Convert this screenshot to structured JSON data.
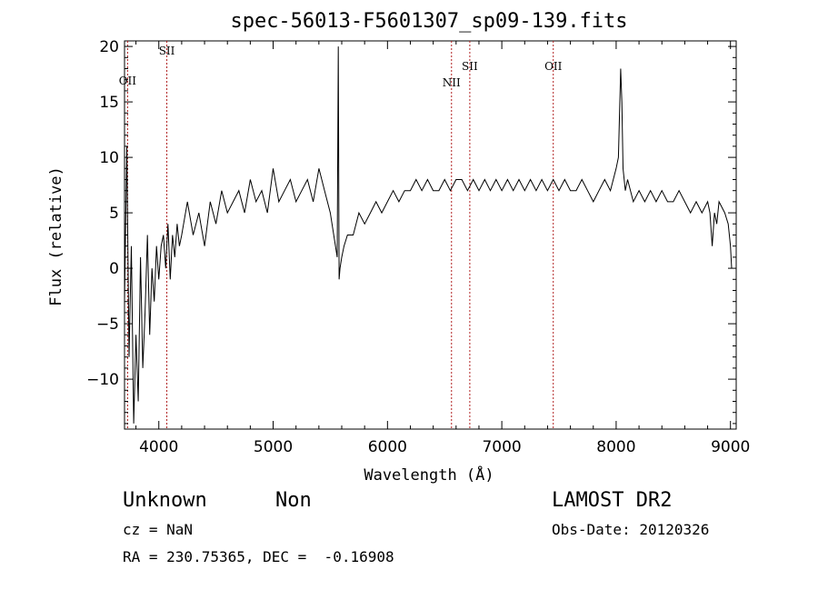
{
  "chart_data": {
    "type": "line",
    "title": "spec-56013-F5601307_sp09-139.fits",
    "xlabel": "Wavelength (Å)",
    "ylabel": "Flux (relative)",
    "xlim": [
      3700,
      9050
    ],
    "ylim": [
      -14.5,
      20.5
    ],
    "xticks": [
      4000,
      5000,
      6000,
      7000,
      8000,
      9000
    ],
    "yticks": [
      -10,
      -5,
      0,
      5,
      10,
      15,
      20
    ],
    "grid": false,
    "series": [
      {
        "x": [
          3700,
          3720,
          3740,
          3760,
          3780,
          3800,
          3820,
          3840,
          3860,
          3880,
          3900,
          3920,
          3940,
          3960,
          3980,
          4000,
          4020,
          4040,
          4060,
          4080,
          4100,
          4120,
          4140,
          4160,
          4180,
          4200,
          4250,
          4300,
          4350,
          4400,
          4450,
          4500,
          4550,
          4600,
          4650,
          4700,
          4750,
          4800,
          4850,
          4900,
          4950,
          5000,
          5050,
          5100,
          5150,
          5200,
          5250,
          5300,
          5350,
          5400,
          5450,
          5500,
          5530,
          5560,
          5570,
          5577,
          5585,
          5600,
          5620,
          5650,
          5700,
          5750,
          5800,
          5850,
          5900,
          5950,
          6000,
          6050,
          6100,
          6150,
          6200,
          6250,
          6300,
          6350,
          6400,
          6450,
          6500,
          6550,
          6600,
          6650,
          6700,
          6750,
          6800,
          6850,
          6900,
          6950,
          7000,
          7050,
          7100,
          7150,
          7200,
          7250,
          7300,
          7350,
          7400,
          7450,
          7500,
          7550,
          7600,
          7650,
          7700,
          7750,
          7800,
          7850,
          7900,
          7950,
          8000,
          8020,
          8040,
          8050,
          8060,
          8080,
          8100,
          8150,
          8200,
          8250,
          8300,
          8350,
          8400,
          8450,
          8500,
          8550,
          8600,
          8650,
          8700,
          8750,
          8800,
          8820,
          8840,
          8860,
          8880,
          8900,
          8950,
          8980,
          9000,
          9010
        ],
        "y": [
          -3,
          11,
          -8,
          2,
          -14,
          -6,
          -12,
          1,
          -9,
          -4,
          3,
          -6,
          0,
          -3,
          2,
          -1,
          2,
          3,
          0,
          4,
          -1,
          3,
          1,
          4,
          2,
          3,
          6,
          3,
          5,
          2,
          6,
          4,
          7,
          5,
          6,
          7,
          5,
          8,
          6,
          7,
          5,
          9,
          6,
          7,
          8,
          6,
          7,
          8,
          6,
          9,
          7,
          5,
          3,
          1,
          20,
          -1,
          0,
          1,
          2,
          3,
          3,
          5,
          4,
          5,
          6,
          5,
          6,
          7,
          6,
          7,
          7,
          8,
          7,
          8,
          7,
          7,
          8,
          7,
          8,
          8,
          7,
          8,
          7,
          8,
          7,
          8,
          7,
          8,
          7,
          8,
          7,
          8,
          7,
          8,
          7,
          8,
          7,
          8,
          7,
          7,
          8,
          7,
          6,
          7,
          8,
          7,
          9,
          10,
          18,
          15,
          9,
          7,
          8,
          6,
          7,
          6,
          7,
          6,
          7,
          6,
          6,
          7,
          6,
          5,
          6,
          5,
          6,
          5,
          2,
          5,
          4,
          6,
          5,
          4,
          2,
          0
        ]
      }
    ],
    "lines": [
      {
        "label": "OII",
        "x": 3727
      },
      {
        "label": "SII",
        "x": 4070
      },
      {
        "label": "NII",
        "x": 6560
      },
      {
        "label": "SII",
        "x": 6720
      },
      {
        "label": "OII",
        "x": 7450
      }
    ]
  },
  "info": {
    "class": "Unknown",
    "subclass": "Non",
    "survey": "LAMOST DR2",
    "cz": "cz = NaN",
    "obs_date": "Obs-Date: 20120326",
    "coords": "RA = 230.75365, DEC =  -0.16908"
  },
  "colors": {
    "line": "#000000",
    "marker": "#b02020"
  }
}
